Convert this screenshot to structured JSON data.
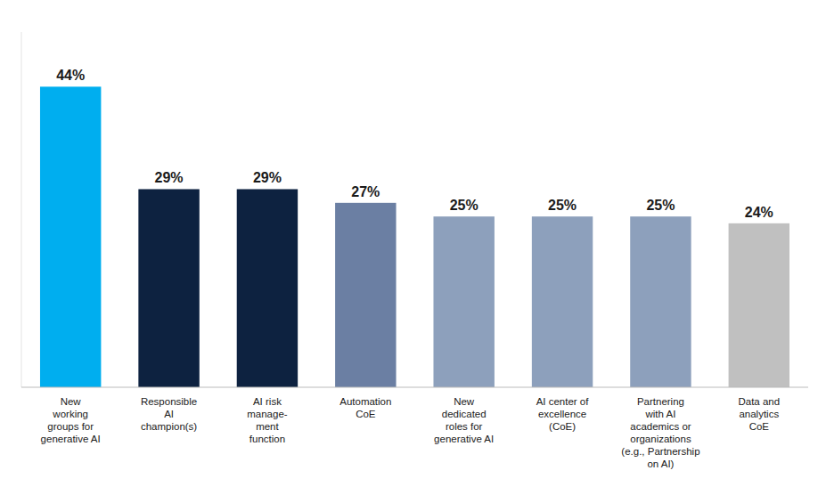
{
  "chart_data": {
    "type": "bar",
    "categories": [
      "New\nworking\ngroups for\ngenerative AI",
      "Responsible\nAI\nchampion(s)",
      "AI risk\nmanage-\nment\nfunction",
      "Automation\nCoE",
      "New\ndedicated\nroles for\ngenerative AI",
      "AI center of\nexcellence\n(CoE)",
      "Partnering\nwith AI\nacademics or\norganizations\n(e.g., Partnership\non AI)",
      "Data and\nanalytics\nCoE"
    ],
    "values": [
      44,
      29,
      29,
      27,
      25,
      25,
      25,
      24
    ],
    "value_labels": [
      "44%",
      "29%",
      "29%",
      "27%",
      "25%",
      "25%",
      "25%",
      "24%"
    ],
    "colors": [
      "#00AEEF",
      "#0D2240",
      "#0D2240",
      "#6B7FA3",
      "#8DA0BC",
      "#8DA0BC",
      "#8DA0BC",
      "#C0C0C0"
    ],
    "ylim": [
      0,
      52
    ],
    "data_labels": true,
    "tick_labels": "x",
    "grid": false
  }
}
